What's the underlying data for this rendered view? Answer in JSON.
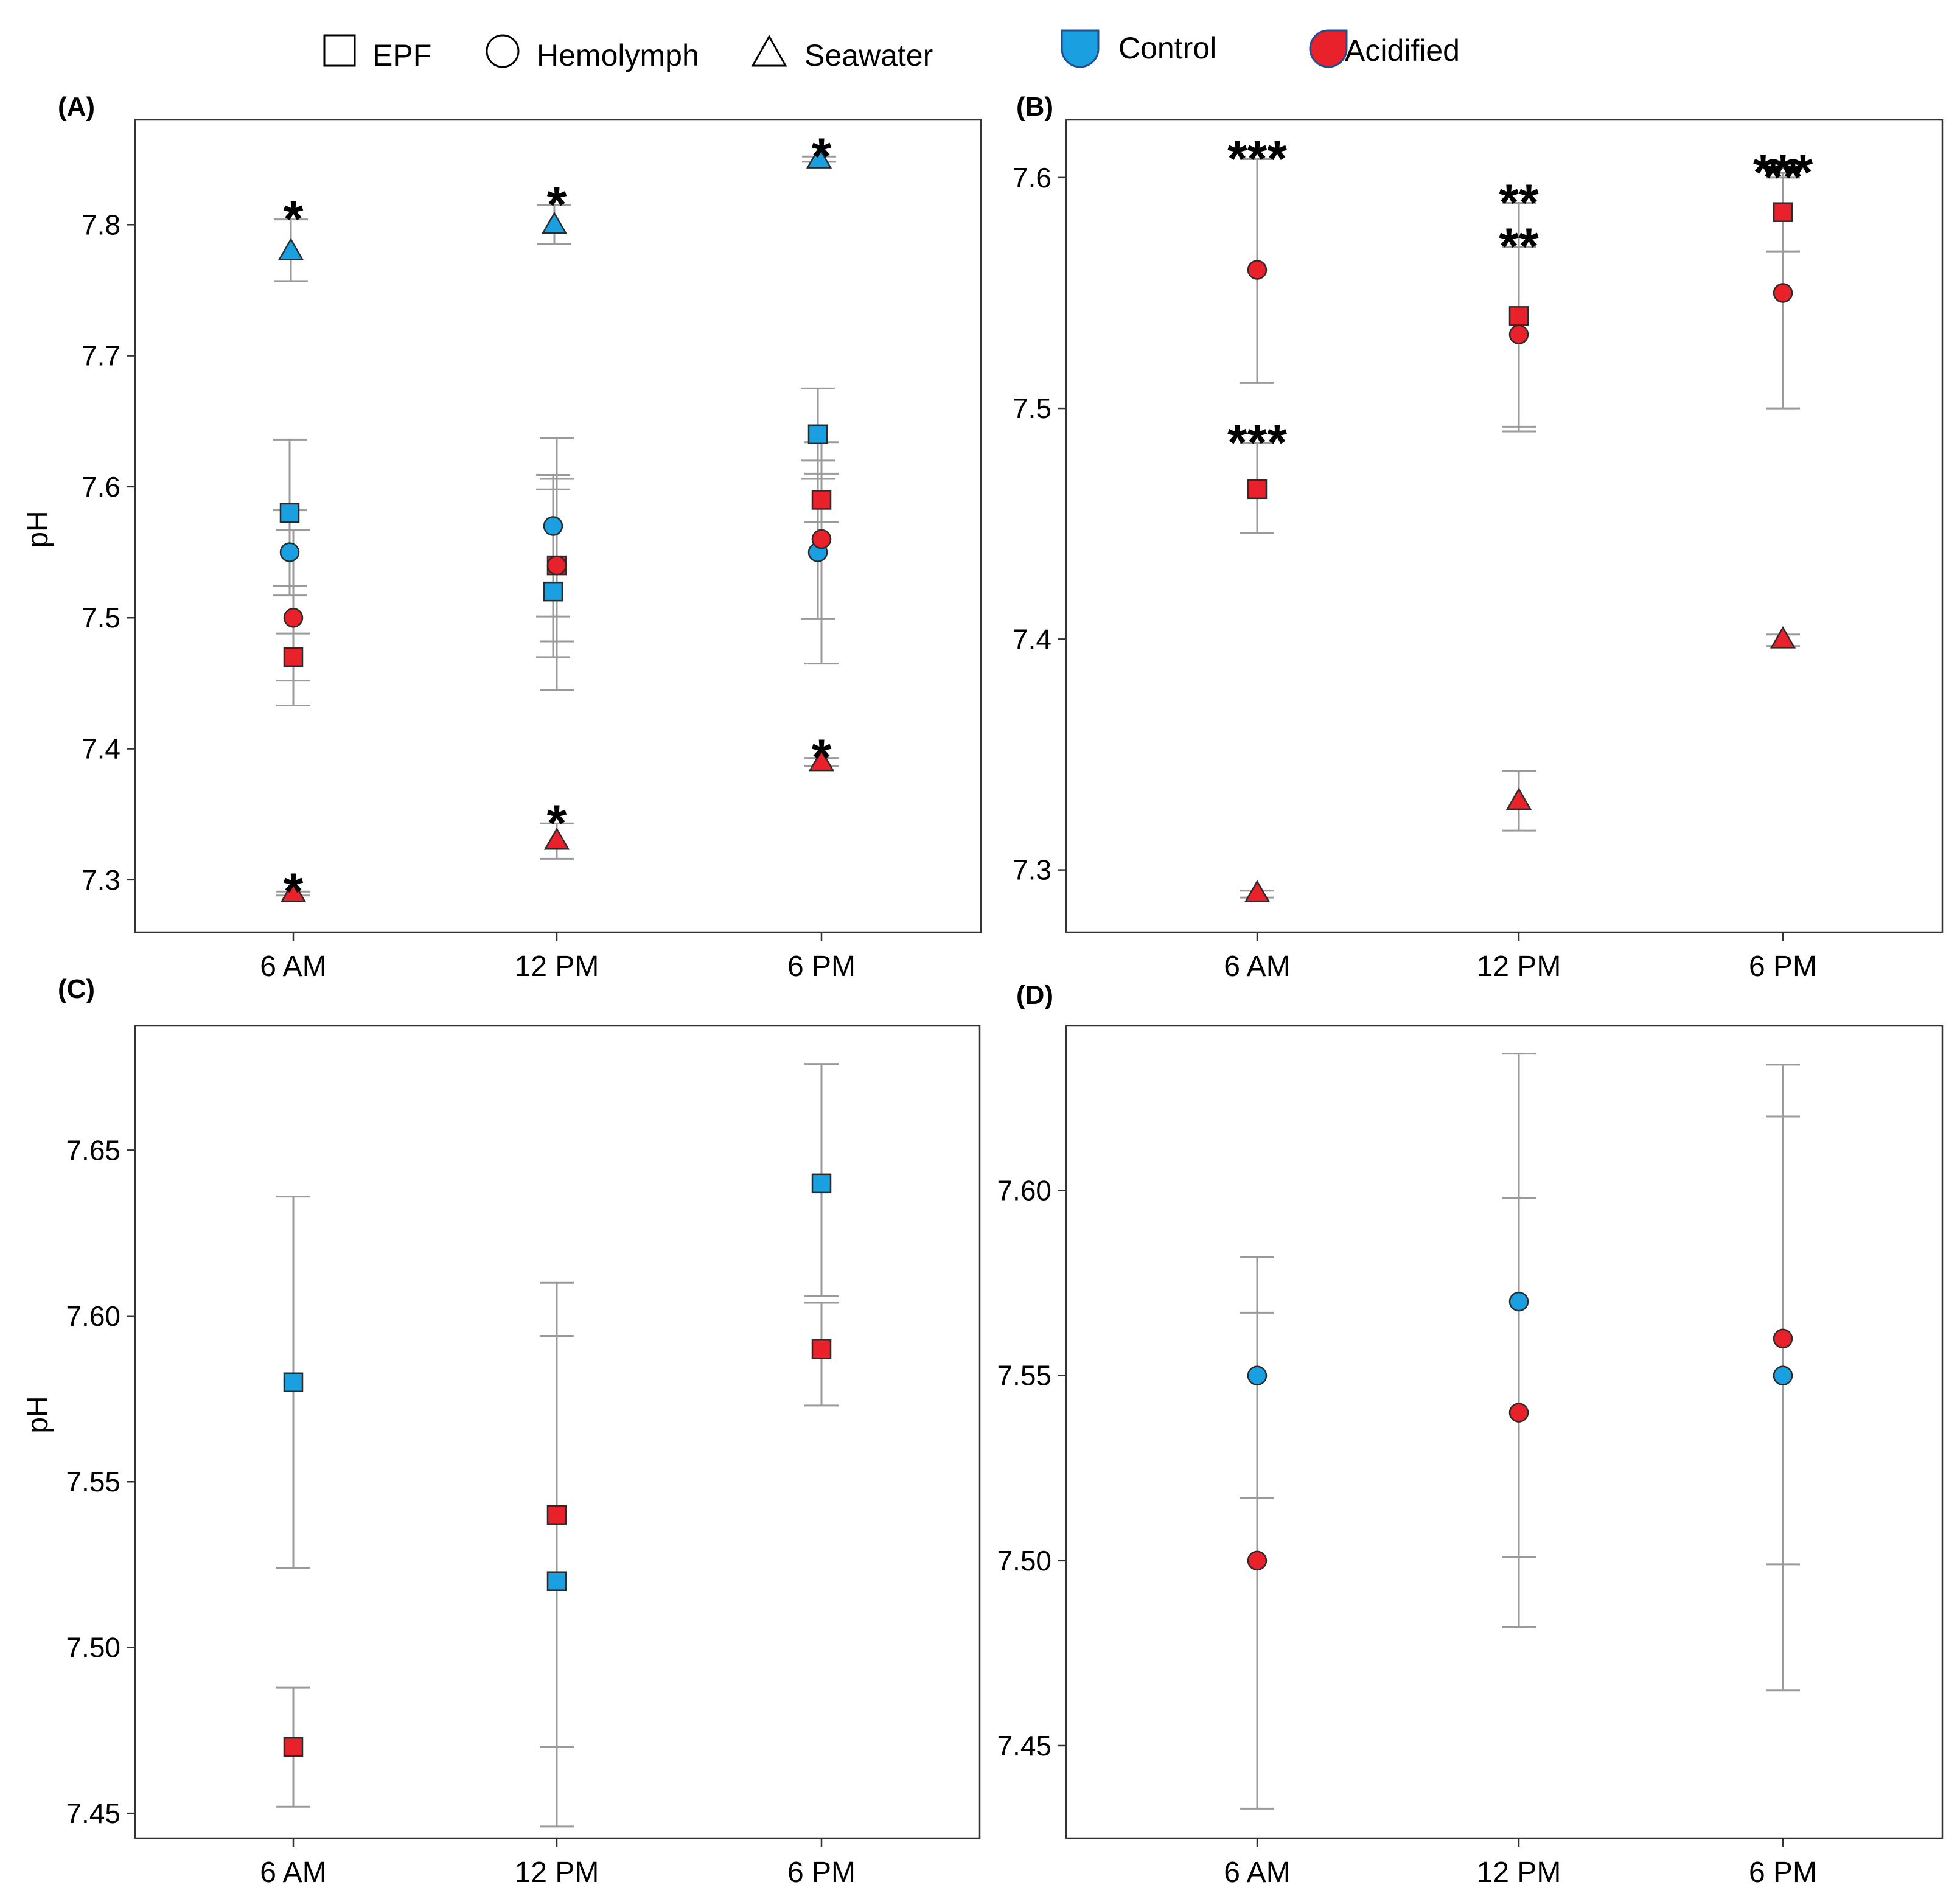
{
  "legend": {
    "shapes": [
      {
        "label": "EPF",
        "shape": "square"
      },
      {
        "label": "Hemolymph",
        "shape": "circle"
      },
      {
        "label": "Seawater",
        "shape": "triangle"
      }
    ],
    "groups": [
      {
        "label": "Control",
        "color": "#1a9fe0"
      },
      {
        "label": "Acidified",
        "color": "#e8212a"
      }
    ]
  },
  "colors": {
    "control": "#1a9fe0",
    "acidified": "#e8212a",
    "errorbar": "#9a9a9a",
    "frame": "#333333"
  },
  "chart_data": [
    {
      "panel": "(A)",
      "type": "scatter",
      "ylabel": "pH",
      "categories": [
        "6 AM",
        "12 PM",
        "6 PM"
      ],
      "ylim": [
        7.26,
        7.88
      ],
      "yticks": [
        7.3,
        7.4,
        7.5,
        7.6,
        7.7,
        7.8
      ],
      "ytick_labels": [
        "7.3",
        "7.4",
        "7.5",
        "7.6",
        "7.7",
        "7.8"
      ],
      "series": [
        {
          "name": "Control EPF",
          "group": "control",
          "shape": "square",
          "values": [
            7.58,
            7.52,
            7.64
          ],
          "lower": [
            7.524,
            7.47,
            7.606
          ],
          "upper": [
            7.636,
            7.609,
            7.675
          ]
        },
        {
          "name": "Control Hemolymph",
          "group": "control",
          "shape": "circle",
          "values": [
            7.55,
            7.57,
            7.55
          ],
          "lower": [
            7.517,
            7.501,
            7.499
          ],
          "upper": [
            7.582,
            7.598,
            7.62
          ]
        },
        {
          "name": "Control Seawater",
          "group": "control",
          "shape": "triangle",
          "values": [
            7.78,
            7.8,
            7.85
          ],
          "lower": [
            7.757,
            7.785,
            7.848
          ],
          "upper": [
            7.804,
            7.815,
            7.852
          ],
          "sig": [
            "*",
            "*",
            "*"
          ]
        },
        {
          "name": "Acidified EPF",
          "group": "acidified",
          "shape": "square",
          "values": [
            7.47,
            7.54,
            7.59
          ],
          "lower": [
            7.452,
            7.445,
            7.573
          ],
          "upper": [
            7.488,
            7.606,
            7.61
          ]
        },
        {
          "name": "Acidified Hemolymph",
          "group": "acidified",
          "shape": "circle",
          "values": [
            7.5,
            7.54,
            7.56
          ],
          "lower": [
            7.433,
            7.482,
            7.465
          ],
          "upper": [
            7.567,
            7.637,
            7.634
          ]
        },
        {
          "name": "Acidified Seawater",
          "group": "acidified",
          "shape": "triangle",
          "values": [
            7.29,
            7.33,
            7.39
          ],
          "lower": [
            7.288,
            7.316,
            7.387
          ],
          "upper": [
            7.291,
            7.343,
            7.393
          ],
          "sig": [
            "*",
            "*",
            "*"
          ]
        }
      ]
    },
    {
      "panel": "(B)",
      "type": "scatter",
      "ylabel": "",
      "categories": [
        "6 AM",
        "12 PM",
        "6 PM"
      ],
      "ylim": [
        7.273,
        7.625
      ],
      "yticks": [
        7.3,
        7.4,
        7.5,
        7.6
      ],
      "ytick_labels": [
        "7.3",
        "7.4",
        "7.5",
        "7.6"
      ],
      "series": [
        {
          "name": "Acidified EPF",
          "group": "acidified",
          "shape": "square",
          "values": [
            7.465,
            7.54,
            7.585
          ],
          "lower": [
            7.446,
            7.492,
            7.568
          ],
          "upper": [
            7.485,
            7.57,
            7.6
          ],
          "sig": [
            "***",
            "**",
            "**"
          ]
        },
        {
          "name": "Acidified Hemolymph",
          "group": "acidified",
          "shape": "circle",
          "values": [
            7.56,
            7.532,
            7.55
          ],
          "lower": [
            7.511,
            7.49,
            7.5
          ],
          "upper": [
            7.608,
            7.589,
            7.602
          ],
          "sig": [
            "***",
            "**",
            "***"
          ]
        },
        {
          "name": "Acidified Seawater",
          "group": "acidified",
          "shape": "triangle",
          "values": [
            7.29,
            7.33,
            7.4
          ],
          "lower": [
            7.288,
            7.317,
            7.397
          ],
          "upper": [
            7.291,
            7.343,
            7.402
          ]
        }
      ]
    },
    {
      "panel": "(C)",
      "type": "scatter",
      "ylabel": "pH",
      "categories": [
        "6 AM",
        "12 PM",
        "6 PM"
      ],
      "ylim": [
        7.4425,
        7.6875
      ],
      "yticks": [
        7.45,
        7.5,
        7.55,
        7.6,
        7.65
      ],
      "ytick_labels": [
        "7.45",
        "7.50",
        "7.55",
        "7.60",
        "7.65"
      ],
      "series": [
        {
          "name": "Control EPF",
          "group": "control",
          "shape": "square",
          "values": [
            7.58,
            7.52,
            7.64
          ],
          "lower": [
            7.524,
            7.47,
            7.606
          ],
          "upper": [
            7.636,
            7.594,
            7.676
          ]
        },
        {
          "name": "Acidified EPF",
          "group": "acidified",
          "shape": "square",
          "values": [
            7.47,
            7.54,
            7.59
          ],
          "lower": [
            7.452,
            7.446,
            7.573
          ],
          "upper": [
            7.488,
            7.61,
            7.604
          ]
        }
      ]
    },
    {
      "panel": "(D)",
      "type": "scatter",
      "ylabel": "",
      "categories": [
        "6 AM",
        "12 PM",
        "6 PM"
      ],
      "ylim": [
        7.425,
        7.6445
      ],
      "yticks": [
        7.45,
        7.5,
        7.55,
        7.6
      ],
      "ytick_labels": [
        "7.45",
        "7.50",
        "7.55",
        "7.60"
      ],
      "series": [
        {
          "name": "Control Hemolymph",
          "group": "control",
          "shape": "circle",
          "values": [
            7.55,
            7.57,
            7.55
          ],
          "lower": [
            7.517,
            7.501,
            7.499
          ],
          "upper": [
            7.582,
            7.598,
            7.62
          ]
        },
        {
          "name": "Acidified Hemolymph",
          "group": "acidified",
          "shape": "circle",
          "values": [
            7.5,
            7.54,
            7.56
          ],
          "lower": [
            7.433,
            7.482,
            7.465
          ],
          "upper": [
            7.567,
            7.637,
            7.634
          ]
        }
      ]
    }
  ]
}
